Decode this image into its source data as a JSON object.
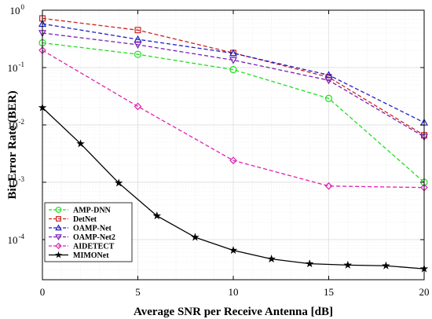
{
  "chart_data": {
    "type": "line",
    "xlabel": "Average SNR per Receive Antenna [dB]",
    "ylabel": "Bit Error Rate (BER)",
    "xlim": [
      0,
      20
    ],
    "ylim": [
      2e-05,
      1
    ],
    "yscale": "log",
    "grid": true,
    "legend_position": "bottom-left",
    "x_ticks": [
      "0",
      "5",
      "10",
      "15",
      "20"
    ],
    "y_ticks": [
      {
        "base": "10",
        "exp": "-4",
        "value": 0.0001
      },
      {
        "base": "10",
        "exp": "-3",
        "value": 0.001
      },
      {
        "base": "10",
        "exp": "-2",
        "value": 0.01
      },
      {
        "base": "10",
        "exp": "-1",
        "value": 0.1
      },
      {
        "base": "10",
        "exp": "0",
        "value": 1
      }
    ],
    "series": [
      {
        "name": "AMP-DNN",
        "color": "#22dd22",
        "dashed": true,
        "marker": "circle",
        "x": [
          0,
          5,
          10,
          15,
          20
        ],
        "y": [
          0.27,
          0.17,
          0.092,
          0.029,
          0.001
        ]
      },
      {
        "name": "DetNet",
        "color": "#cc2222",
        "dashed": true,
        "marker": "square",
        "x": [
          0,
          5,
          10,
          15,
          20
        ],
        "y": [
          0.72,
          0.45,
          0.18,
          0.068,
          0.0066
        ]
      },
      {
        "name": "OAMP-Net",
        "color": "#1e1ec8",
        "dashed": true,
        "marker": "triangle-up",
        "x": [
          0,
          5,
          10,
          15,
          20
        ],
        "y": [
          0.58,
          0.31,
          0.178,
          0.074,
          0.011
        ]
      },
      {
        "name": "OAMP-Net2",
        "color": "#7a1fb4",
        "dashed": true,
        "marker": "triangle-down",
        "x": [
          0,
          5,
          10,
          15,
          20
        ],
        "y": [
          0.4,
          0.25,
          0.135,
          0.06,
          0.0062
        ]
      },
      {
        "name": "AIDETECT",
        "color": "#e020b0",
        "dashed": true,
        "marker": "diamond",
        "x": [
          0,
          5,
          10,
          15,
          20
        ],
        "y": [
          0.2,
          0.021,
          0.0024,
          0.00086,
          0.00081
        ]
      },
      {
        "name": "MIMONet",
        "color": "#000000",
        "dashed": false,
        "marker": "star",
        "x": [
          0,
          2,
          4,
          6,
          8,
          10,
          12,
          14,
          16,
          18,
          20
        ],
        "y": [
          0.02,
          0.0047,
          0.00097,
          0.00026,
          0.00011,
          6.5e-05,
          4.6e-05,
          3.8e-05,
          3.6e-05,
          3.5e-05,
          3.1e-05
        ]
      }
    ]
  }
}
